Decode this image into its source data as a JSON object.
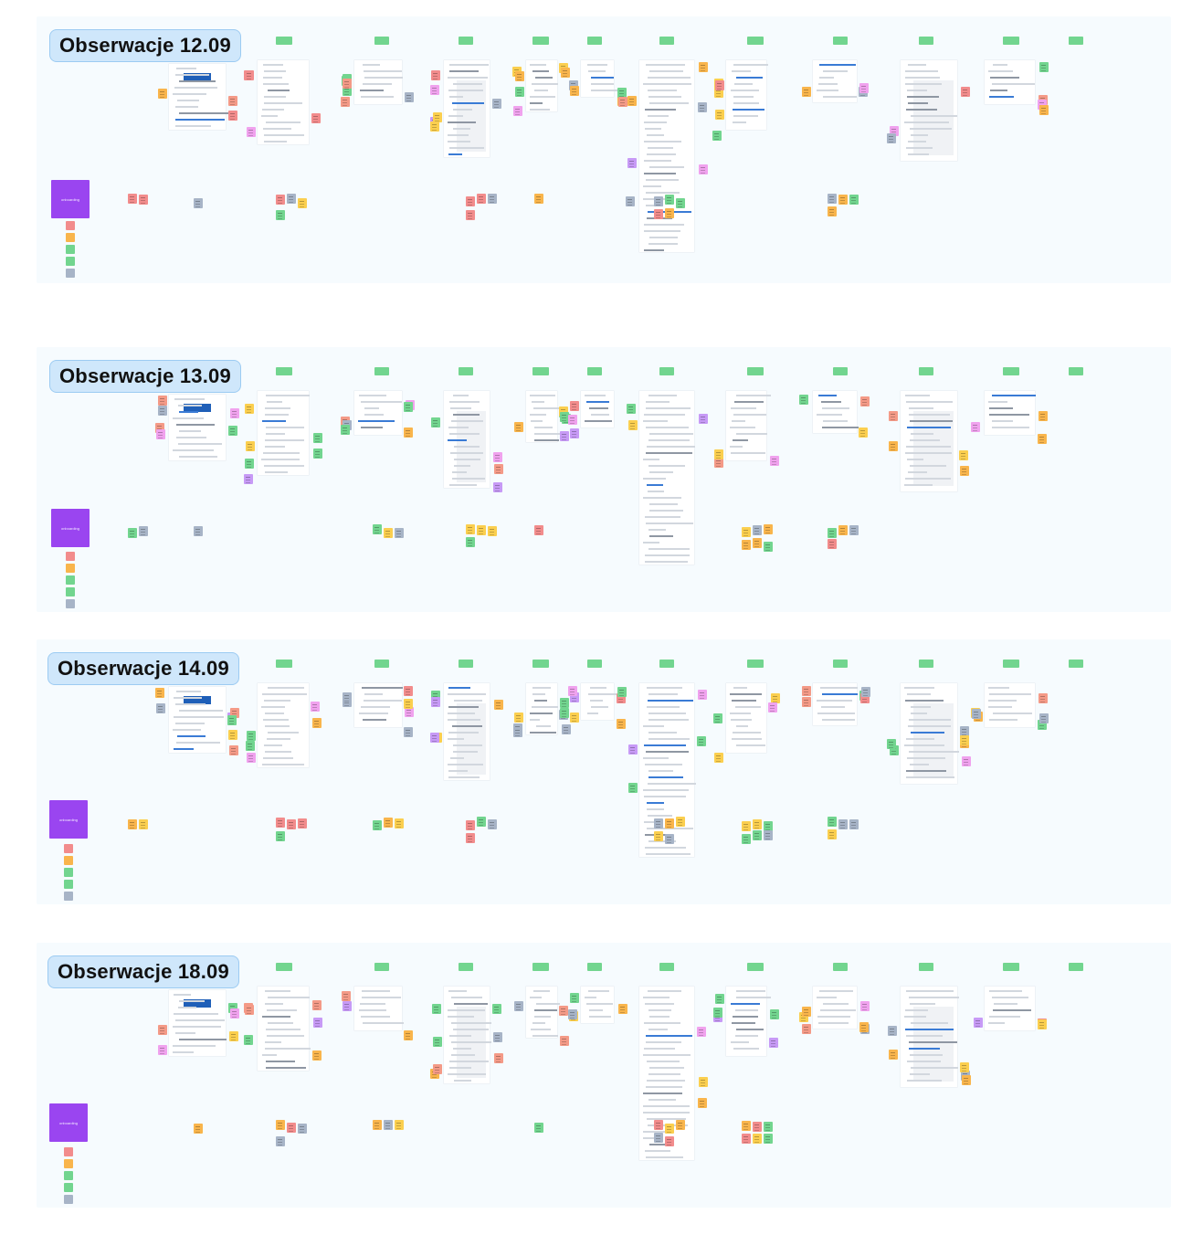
{
  "boards": [
    {
      "title": "Obserwacje 12.09",
      "card_label": "onboarding"
    },
    {
      "title": "Obserwacje 13.09",
      "card_label": "onboarding"
    },
    {
      "title": "Obserwacje 14.09",
      "card_label": "onboarding"
    },
    {
      "title": "Obserwacje 18.09",
      "card_label": "onboarding"
    }
  ],
  "colors": {
    "green": "#72d58f",
    "yellow": "#fbcf4f",
    "orange": "#f9b54c",
    "pink": "#f28c8c",
    "salmon": "#f49a87",
    "purple": "#c79af6",
    "magenta": "#f0a2ee",
    "blue": "#6cb6f4",
    "gray": "#a7b4c7",
    "violet_card": "#9a45f0",
    "board_bg": "#f6fbfe",
    "pill_bg": "#cfe7fb"
  }
}
